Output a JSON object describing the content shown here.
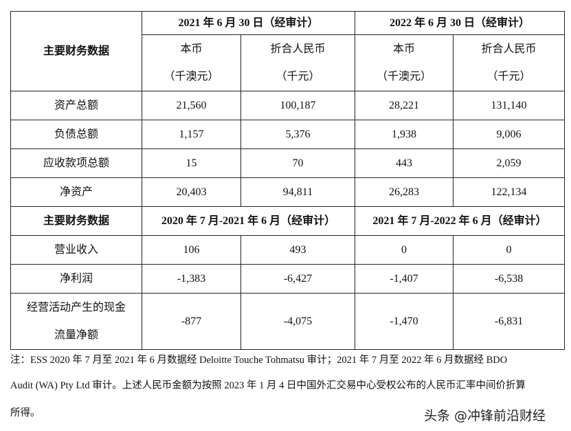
{
  "table": {
    "label_header": "主要财务数据",
    "period1": "2021 年 6 月 30 日（经审计）",
    "period2": "2022 年 6 月 30 日（经审计）",
    "local_currency": "本币",
    "local_unit": "（千澳元）",
    "rmb": "折合人民币",
    "rmb_unit": "（千元）",
    "balance_rows": [
      {
        "label": "资产总额",
        "v": [
          "21,560",
          "100,187",
          "28,221",
          "131,140"
        ]
      },
      {
        "label": "负债总额",
        "v": [
          "1,157",
          "5,376",
          "1,938",
          "9,006"
        ]
      },
      {
        "label": "应收款项总额",
        "v": [
          "15",
          "70",
          "443",
          "2,059"
        ]
      },
      {
        "label": "净资产",
        "v": [
          "20,403",
          "94,811",
          "26,283",
          "122,134"
        ]
      }
    ],
    "label_header2": "主要财务数据",
    "period3": "2020 年 7 月-2021 年 6 月（经审计）",
    "period4": "2021 年 7 月-2022 年 6 月（经审计）",
    "income_rows": [
      {
        "label": "营业收入",
        "v": [
          "106",
          "493",
          "0",
          "0"
        ]
      },
      {
        "label": "净利润",
        "v": [
          "-1,383",
          "-6,427",
          "-1,407",
          "-6,538"
        ]
      }
    ],
    "cash_row": {
      "label1": "经营活动产生的现金",
      "label2": "流量净额",
      "v": [
        "-877",
        "-4,075",
        "-1,470",
        "-6,831"
      ]
    }
  },
  "note": {
    "line1": "注：ESS 2020 年 7 月至 2021 年 6 月数据经 Deloitte  Touche Tohmatsu 审计；2021 年 7 月至 2022 年 6 月数据经 BDO",
    "line2": "Audit (WA) Pty Ltd 审计。上述人民币金额为按照 2023 年 1 月 4 日中国外汇交易中心受权公布的人民币汇率中间价折算",
    "line3": "所得。"
  },
  "watermark": "头条 @冲锋前沿财经"
}
